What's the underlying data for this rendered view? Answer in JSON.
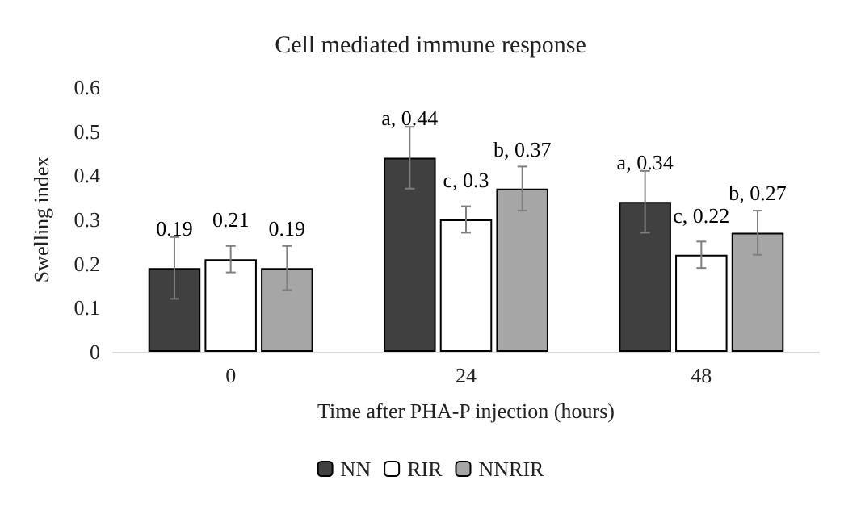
{
  "chart_data": {
    "type": "bar",
    "title": "Cell mediated immune response",
    "xlabel": "Time after PHA-P injection (hours)",
    "ylabel": "Swelling index",
    "categories": [
      "0",
      "24",
      "48"
    ],
    "series": [
      {
        "name": "NN",
        "color": "#404040",
        "values": [
          0.19,
          0.44,
          0.34
        ],
        "errors": [
          0.07,
          0.07,
          0.07
        ],
        "value_labels": [
          "0.19",
          "a, 0.44",
          "a, 0.34"
        ]
      },
      {
        "name": "RIR",
        "color": "#ffffff",
        "values": [
          0.21,
          0.3,
          0.22
        ],
        "errors": [
          0.03,
          0.03,
          0.03
        ],
        "value_labels": [
          "0.21",
          "c, 0.3",
          "c, 0.22"
        ]
      },
      {
        "name": "NNRIR",
        "color": "#a6a6a6",
        "values": [
          0.19,
          0.37,
          0.27
        ],
        "errors": [
          0.05,
          0.05,
          0.05
        ],
        "value_labels": [
          "0.19",
          "b, 0.37",
          "b, 0.27"
        ]
      }
    ],
    "ylim": [
      0,
      0.6
    ],
    "yticks": [
      0,
      0.1,
      0.2,
      0.3,
      0.4,
      0.5,
      0.6
    ],
    "grid": false,
    "legend": "bottom"
  }
}
